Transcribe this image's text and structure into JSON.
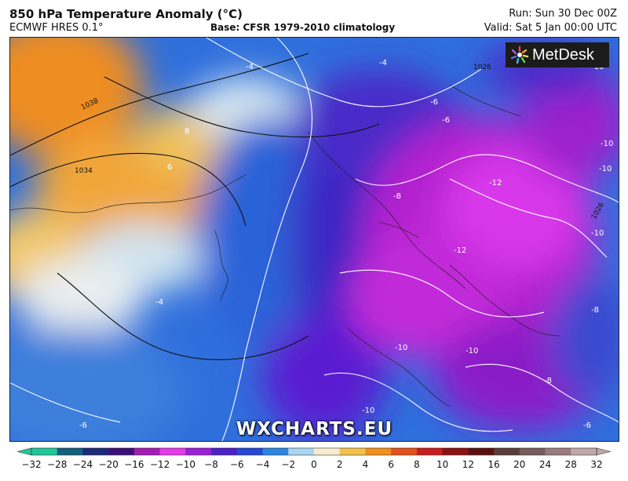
{
  "header": {
    "title": "850 hPa Temperature Anomaly (°C)",
    "subtitle": "ECMWF HRES 0.1°",
    "base": "Base: CFSR 1979-2010 climatology",
    "run": "Run: Sun 30 Dec 00Z",
    "valid": "Valid: Sat 5 Jan 00:00 UTC"
  },
  "logo": {
    "text": "MetDesk",
    "icon": "metdesk-star-icon"
  },
  "watermark": "WXCHARTS.EU",
  "map": {
    "isotherm_labels": [
      "-4",
      "-4",
      "-6",
      "-6",
      "-8",
      "-8",
      "-10",
      "-10",
      "-10",
      "-10",
      "-12",
      "-12",
      "-10",
      "-8",
      "-6",
      "-6",
      "-4",
      "-10",
      "-10"
    ],
    "isobar_labels": [
      "1038",
      "1034",
      "1026",
      "1026"
    ],
    "spot_labels": [
      "8",
      "6"
    ]
  },
  "colorbar": {
    "ticks": [
      "-32",
      "-28",
      "-24",
      "-20",
      "-16",
      "-12",
      "-10",
      "-8",
      "-6",
      "-4",
      "-2",
      "0",
      "2",
      "4",
      "6",
      "8",
      "10",
      "12",
      "16",
      "20",
      "24",
      "28",
      "32"
    ],
    "colors": [
      "#1fc79a",
      "#135f80",
      "#1d2a77",
      "#3a0f7a",
      "#a21bb3",
      "#e43ae7",
      "#9a20d6",
      "#4b22c8",
      "#2648d6",
      "#2c86e0",
      "#a8d6f0",
      "#f7ecd0",
      "#f4c24a",
      "#f08f1a",
      "#e2511a",
      "#c81d1d",
      "#8a1212",
      "#5a1010",
      "#5a3a3a",
      "#7a5a5a",
      "#9a7a7a",
      "#c0a8a8"
    ]
  }
}
